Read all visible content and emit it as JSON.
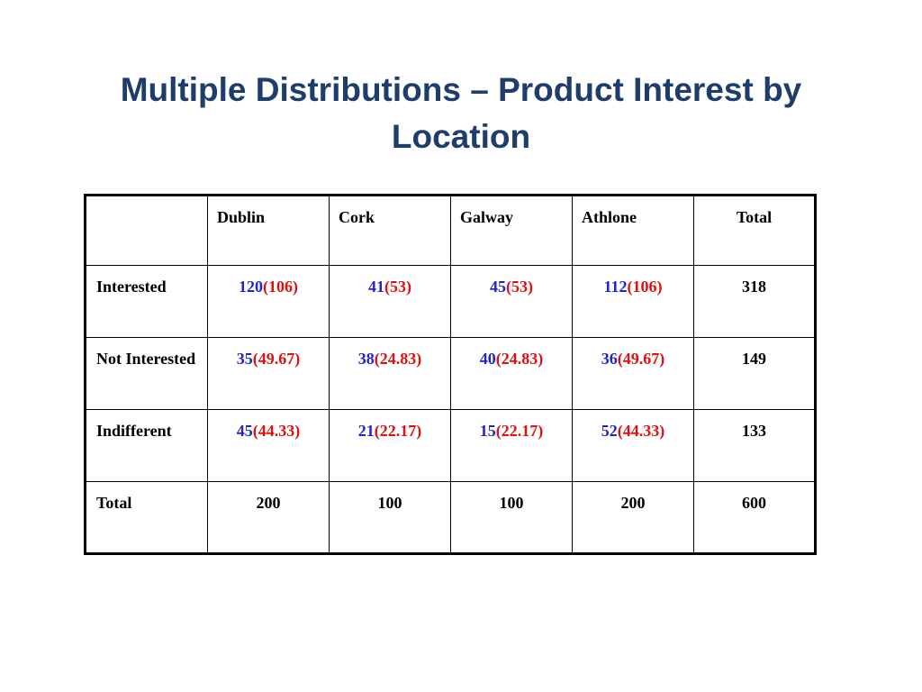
{
  "slide": {
    "title": "Multiple Distributions – Product Interest by Location"
  },
  "table": {
    "header": [
      "",
      "Dublin",
      "Cork",
      "Galway",
      "Athlone",
      "Total"
    ],
    "rows": [
      {
        "label": "Interested",
        "cells": [
          {
            "observed": "120",
            "expected": "(106)"
          },
          {
            "observed": "41",
            "expected": "(53)"
          },
          {
            "observed": "45",
            "expected": "(53)"
          },
          {
            "observed": "112",
            "expected": "(106)"
          }
        ],
        "total": "318"
      },
      {
        "label": "Not Interested",
        "cells": [
          {
            "observed": "35",
            "expected": "(49.67)"
          },
          {
            "observed": "38",
            "expected": "(24.83)"
          },
          {
            "observed": "40",
            "expected": "(24.83)"
          },
          {
            "observed": "36",
            "expected": "(49.67)"
          }
        ],
        "total": "149"
      },
      {
        "label": "Indifferent",
        "cells": [
          {
            "observed": "45",
            "expected": "(44.33)"
          },
          {
            "observed": "21",
            "expected": "(22.17)"
          },
          {
            "observed": "15",
            "expected": "(22.17)"
          },
          {
            "observed": "52",
            "expected": "(44.33)"
          }
        ],
        "total": "133"
      }
    ],
    "totals_row": {
      "label": "Total",
      "values": [
        "200",
        "100",
        "100",
        "200"
      ],
      "grand_total": "600"
    }
  },
  "colors": {
    "title": "#1f3d6b",
    "observed": "#2323c8",
    "expected": "#e01010"
  }
}
